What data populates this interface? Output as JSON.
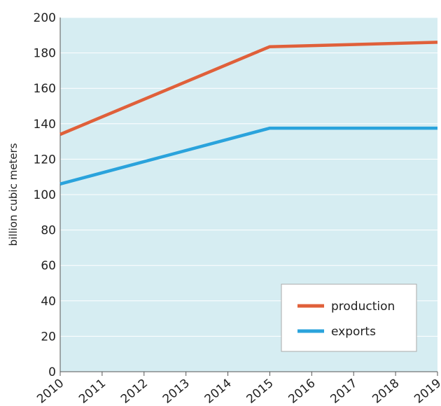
{
  "chart_data": {
    "type": "line",
    "title": "",
    "xlabel": "",
    "ylabel": "billion cubic meters",
    "x": [
      2010,
      2011,
      2012,
      2013,
      2014,
      2015,
      2016,
      2017,
      2018,
      2019
    ],
    "ylim": [
      0,
      200
    ],
    "yticks": [
      0,
      20,
      40,
      60,
      80,
      100,
      120,
      140,
      160,
      180,
      200
    ],
    "grid": true,
    "legend_position": "bottom-right",
    "series": [
      {
        "name": "production",
        "color": "#E0603A",
        "points": [
          [
            2010,
            134
          ],
          [
            2015,
            183.5
          ],
          [
            2019,
            186
          ]
        ]
      },
      {
        "name": "exports",
        "color": "#2AA3DC",
        "points": [
          [
            2010,
            106
          ],
          [
            2015,
            137.5
          ],
          [
            2019,
            137.5
          ]
        ]
      }
    ],
    "plot_background": "#D6EDF2",
    "grid_color": "#FFFFFF"
  }
}
